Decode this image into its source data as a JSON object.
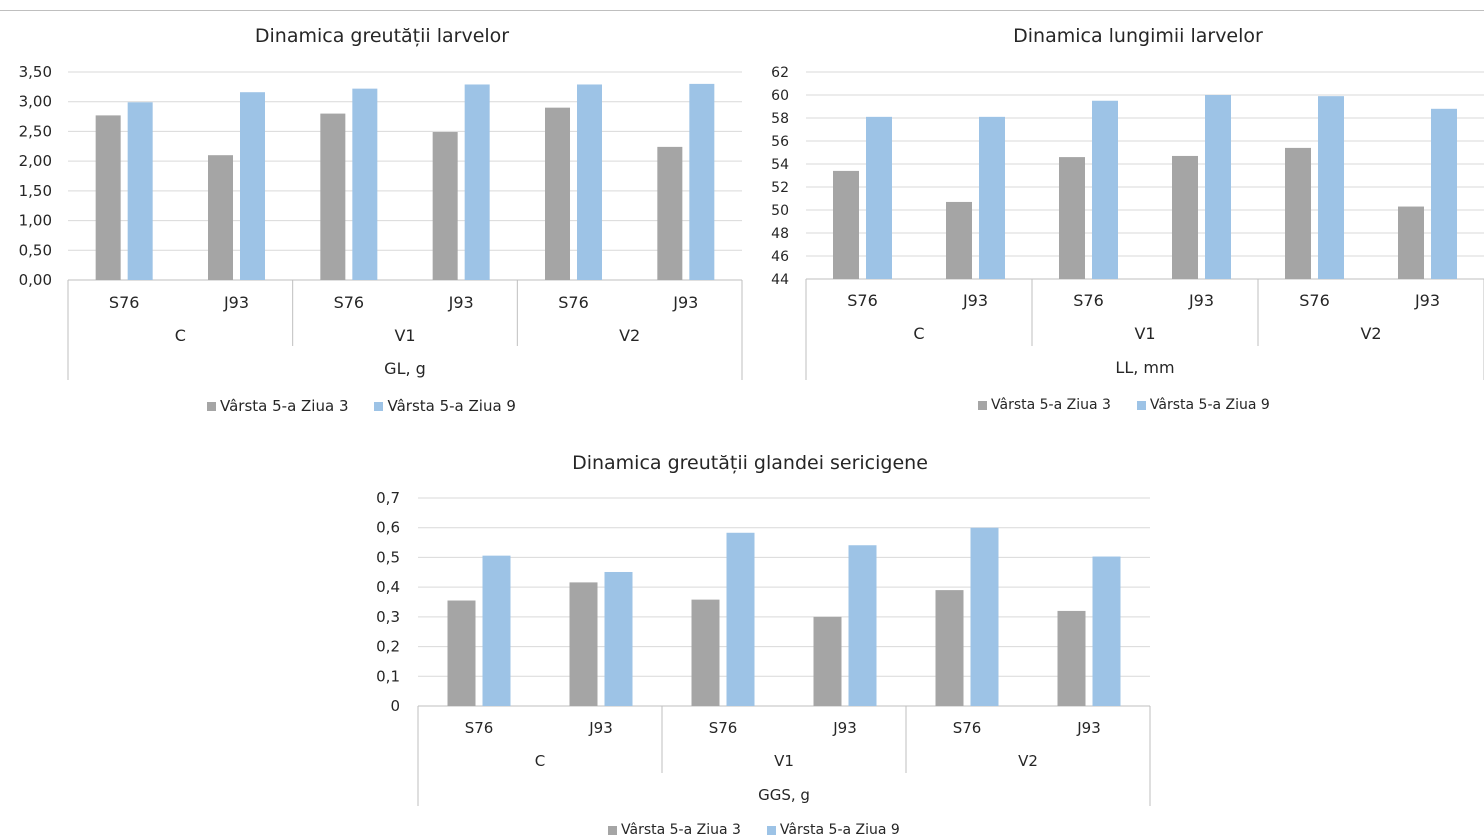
{
  "colors": {
    "series_a": "#a5a5a5",
    "series_b": "#9dc3e6",
    "grid": "#d9d9d9",
    "axis": "#bfbfbf"
  },
  "chart_data": [
    {
      "type": "bar",
      "title": "Dinamica greutății larvelor",
      "xlabel": "GL, g",
      "ylabel": "",
      "ylim": [
        0,
        3.5
      ],
      "yticks": [
        "0,00",
        "0,50",
        "1,00",
        "1,50",
        "2,00",
        "2,50",
        "3,00",
        "3,50"
      ],
      "categories": [
        "S76",
        "J93",
        "S76",
        "J93",
        "S76",
        "J93"
      ],
      "groups": [
        "C",
        "V1",
        "V2"
      ],
      "grid": true,
      "legend_position": "bottom",
      "series": [
        {
          "name": "Vârsta 5-a  Ziua 3",
          "values": [
            2.77,
            2.1,
            2.8,
            2.49,
            2.9,
            2.24
          ]
        },
        {
          "name": "Vârsta 5-a  Ziua 9",
          "values": [
            2.99,
            3.16,
            3.22,
            3.29,
            3.29,
            3.3
          ]
        }
      ]
    },
    {
      "type": "bar",
      "title": "Dinamica lungimii larvelor",
      "xlabel": "LL, mm",
      "ylabel": "",
      "ylim": [
        44,
        62
      ],
      "yticks": [
        "44",
        "46",
        "48",
        "50",
        "52",
        "54",
        "56",
        "58",
        "60",
        "62"
      ],
      "categories": [
        "S76",
        "J93",
        "S76",
        "J93",
        "S76",
        "J93"
      ],
      "groups": [
        "C",
        "V1",
        "V2"
      ],
      "grid": true,
      "legend_position": "bottom",
      "series": [
        {
          "name": "Vârsta 5-a  Ziua 3",
          "values": [
            53.4,
            50.7,
            54.6,
            54.7,
            55.4,
            50.3
          ]
        },
        {
          "name": "Vârsta 5-a  Ziua 9",
          "values": [
            58.1,
            58.1,
            59.5,
            60.0,
            59.9,
            58.8
          ]
        }
      ]
    },
    {
      "type": "bar",
      "title": "Dinamica greutății glandei sericigene",
      "xlabel": "GGS, g",
      "ylabel": "",
      "ylim": [
        0,
        0.7
      ],
      "yticks": [
        "0",
        "0,1",
        "0,2",
        "0,3",
        "0,4",
        "0,5",
        "0,6",
        "0,7"
      ],
      "categories": [
        "S76",
        "J93",
        "S76",
        "J93",
        "S76",
        "J93"
      ],
      "groups": [
        "C",
        "V1",
        "V2"
      ],
      "grid": true,
      "legend_position": "bottom",
      "series": [
        {
          "name": "Vârsta 5-a  Ziua 3",
          "values": [
            0.355,
            0.416,
            0.358,
            0.3,
            0.39,
            0.32
          ]
        },
        {
          "name": "Vârsta 5-a  Ziua 9",
          "values": [
            0.506,
            0.451,
            0.583,
            0.541,
            0.6,
            0.503
          ]
        }
      ]
    }
  ]
}
